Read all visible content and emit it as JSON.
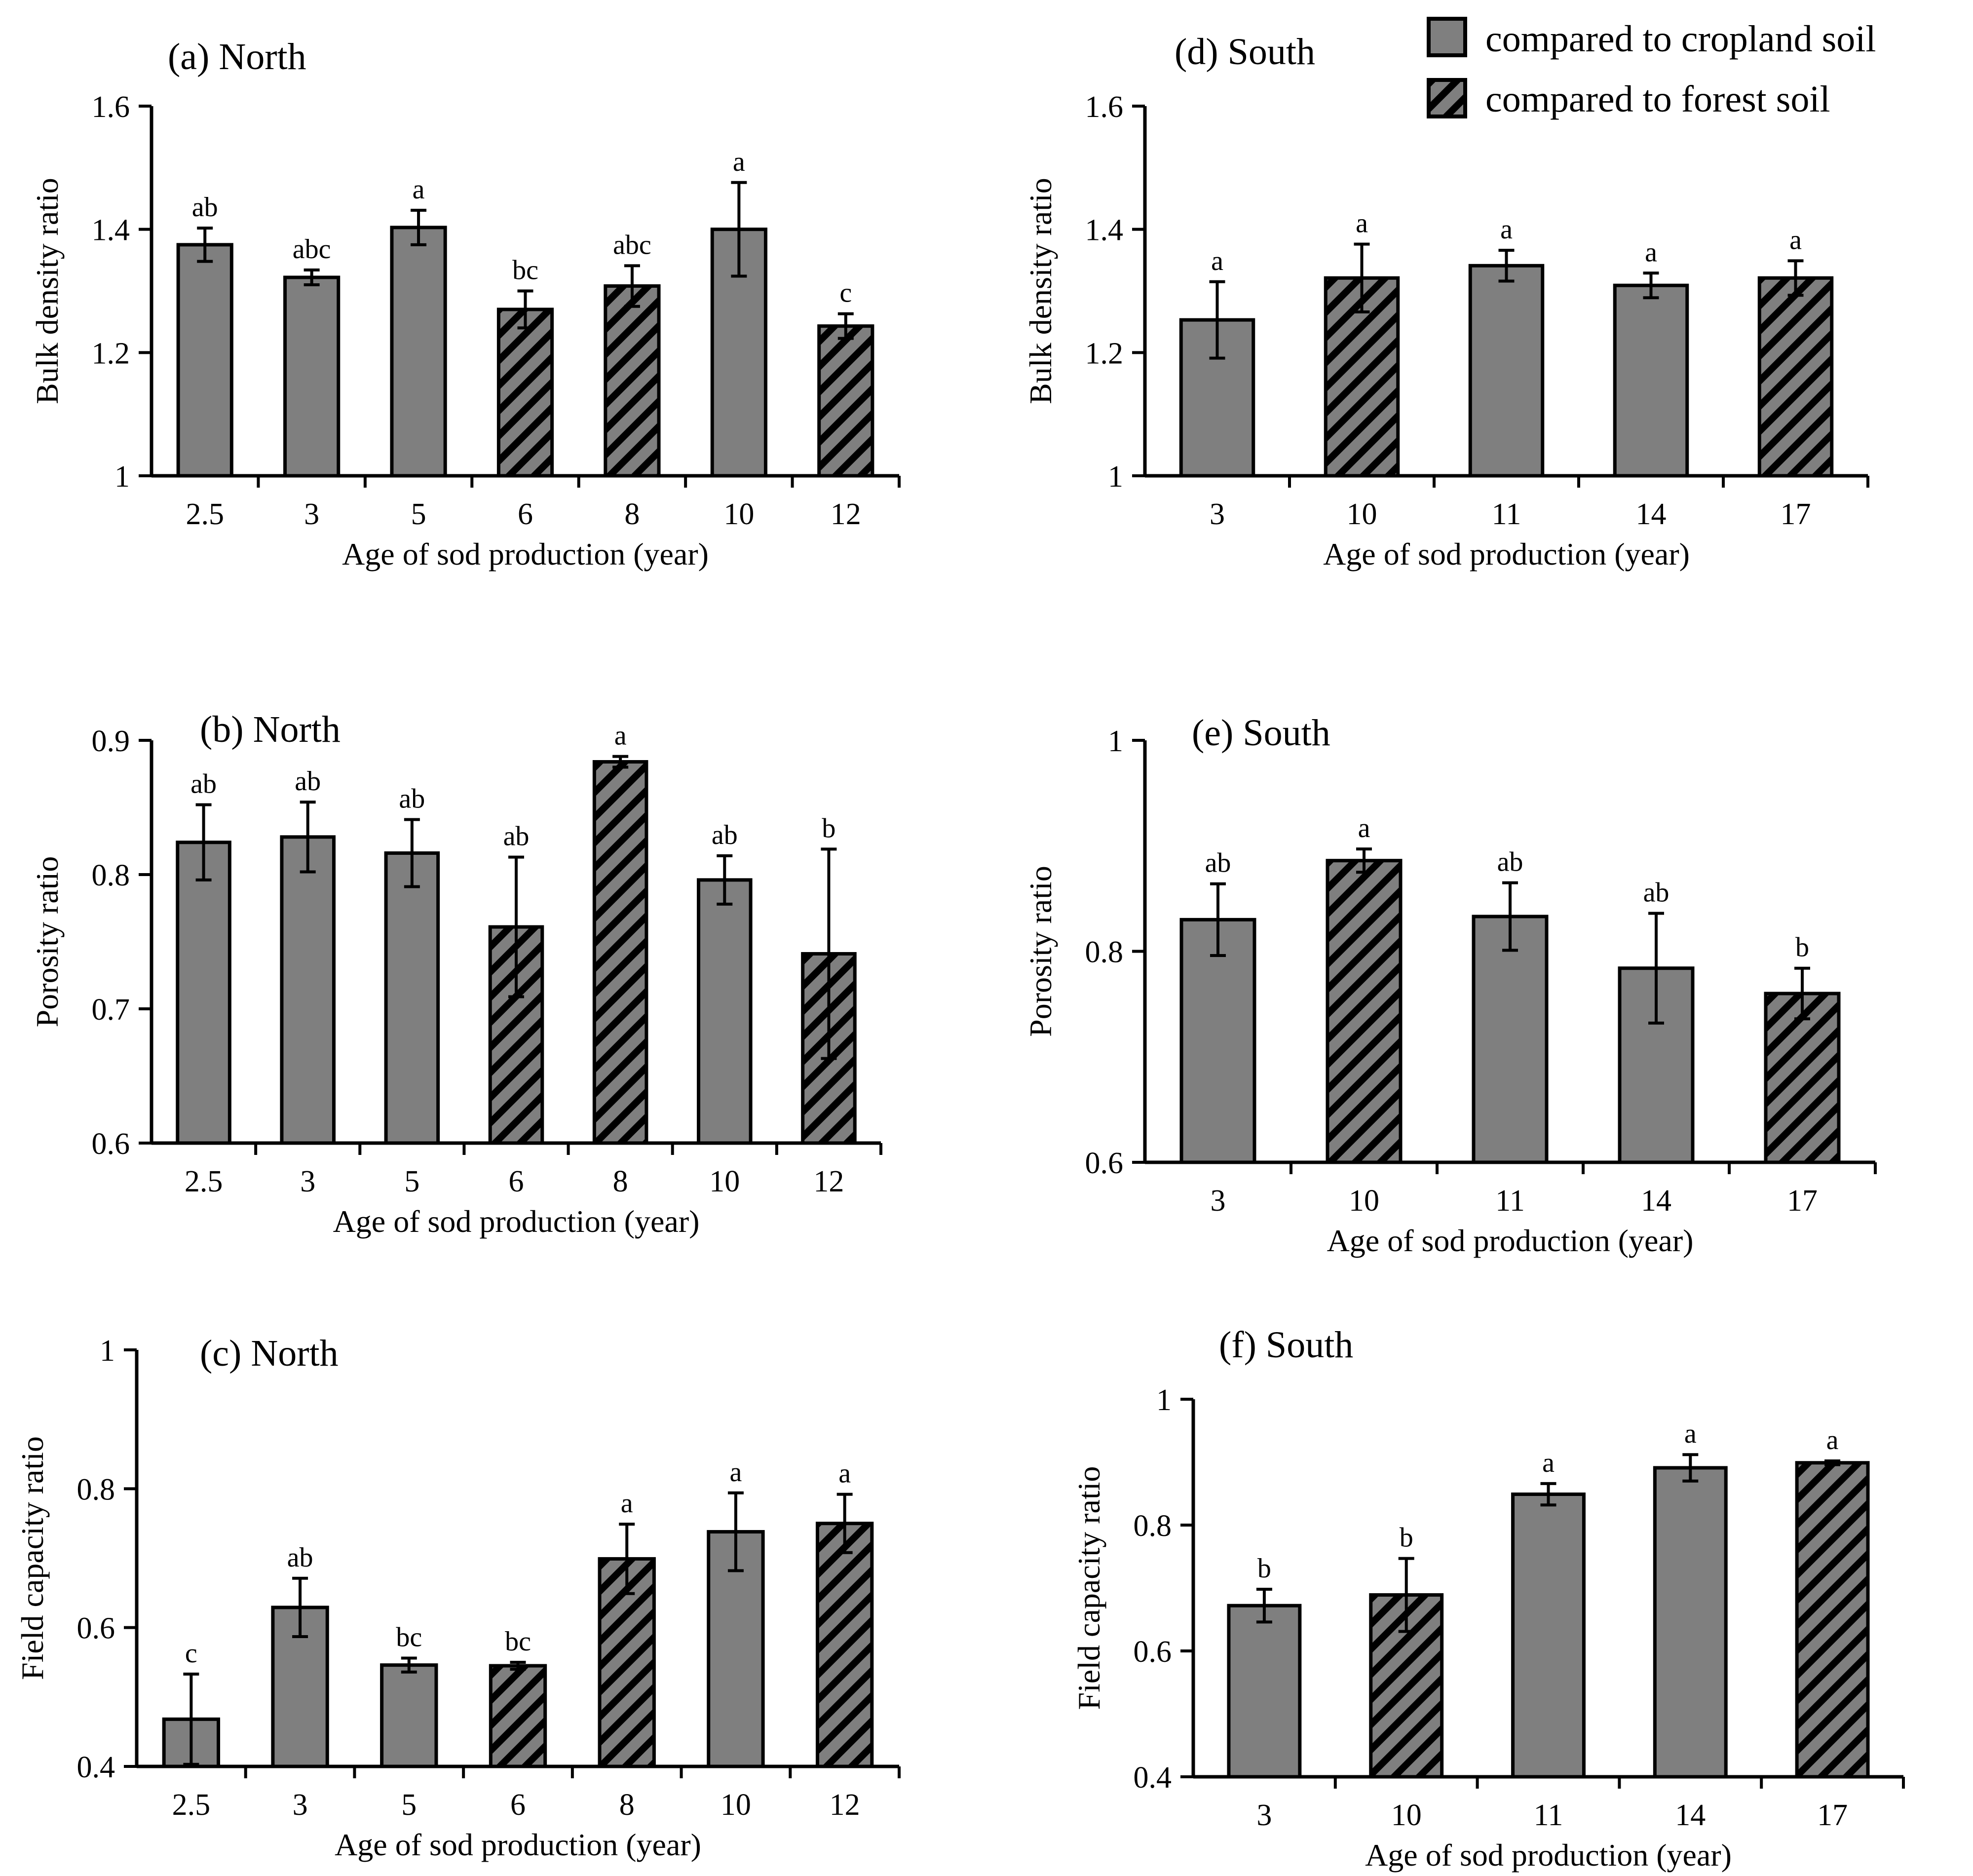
{
  "colors": {
    "bar_fill": "#7f7f7f",
    "stroke": "#000000",
    "hatch": "#000000",
    "background": "#ffffff"
  },
  "legend": {
    "position": "top-right",
    "items": [
      {
        "label": "compared to cropland soil",
        "pattern": "solid"
      },
      {
        "label": "compared to forest soil",
        "pattern": "hatched"
      }
    ]
  },
  "chart_data": [
    {
      "id": "a",
      "type": "bar",
      "title": "(a) North",
      "xlabel": "Age of sod production (year)",
      "ylabel": "Bulk density ratio",
      "ylim": [
        1,
        1.6
      ],
      "yticks": [
        "1",
        "1.2",
        "1.4",
        "1.6"
      ],
      "categories": [
        "2.5",
        "3",
        "5",
        "6",
        "8",
        "10",
        "12"
      ],
      "values": [
        1.375,
        1.322,
        1.403,
        1.27,
        1.308,
        1.4,
        1.243
      ],
      "errors": [
        0.027,
        0.012,
        0.028,
        0.03,
        0.033,
        0.076,
        0.02
      ],
      "letters": [
        "ab",
        "abc",
        "a",
        "bc",
        "abc",
        "a",
        "c"
      ],
      "patterns": [
        "solid",
        "solid",
        "solid",
        "hatched",
        "hatched",
        "solid",
        "hatched"
      ]
    },
    {
      "id": "b",
      "type": "bar",
      "title": "(b) North",
      "xlabel": "Age of sod production (year)",
      "ylabel": "Porosity ratio",
      "ylim": [
        0.6,
        0.9
      ],
      "yticks": [
        "0.6",
        "0.7",
        "0.8",
        "0.9"
      ],
      "categories": [
        "2.5",
        "3",
        "5",
        "6",
        "8",
        "10",
        "12"
      ],
      "values": [
        0.824,
        0.828,
        0.816,
        0.761,
        0.884,
        0.796,
        0.741
      ],
      "errors": [
        0.028,
        0.026,
        0.025,
        0.052,
        0.004,
        0.018,
        0.078
      ],
      "letters": [
        "ab",
        "ab",
        "ab",
        "ab",
        "a",
        "ab",
        "b"
      ],
      "patterns": [
        "solid",
        "solid",
        "solid",
        "hatched",
        "hatched",
        "solid",
        "hatched"
      ]
    },
    {
      "id": "c",
      "type": "bar",
      "title": "(c) North",
      "xlabel": "Age of sod production (year)",
      "ylabel": "Field capacity ratio",
      "ylim": [
        0.4,
        1
      ],
      "yticks": [
        "0.4",
        "0.6",
        "0.8",
        "1"
      ],
      "categories": [
        "2.5",
        "3",
        "5",
        "6",
        "8",
        "10",
        "12"
      ],
      "values": [
        0.468,
        0.629,
        0.546,
        0.545,
        0.699,
        0.738,
        0.75
      ],
      "errors": [
        0.065,
        0.042,
        0.01,
        0.005,
        0.05,
        0.056,
        0.042
      ],
      "letters": [
        "c",
        "ab",
        "bc",
        "bc",
        "a",
        "a",
        "a"
      ],
      "patterns": [
        "solid",
        "solid",
        "solid",
        "hatched",
        "hatched",
        "solid",
        "hatched"
      ]
    },
    {
      "id": "d",
      "type": "bar",
      "title": "(d) South",
      "xlabel": "Age of sod production (year)",
      "ylabel": "Bulk density ratio",
      "ylim": [
        1,
        1.6
      ],
      "yticks": [
        "1",
        "1.2",
        "1.4",
        "1.6"
      ],
      "categories": [
        "3",
        "10",
        "11",
        "14",
        "17"
      ],
      "values": [
        1.253,
        1.321,
        1.341,
        1.309,
        1.321
      ],
      "errors": [
        0.062,
        0.055,
        0.025,
        0.02,
        0.028
      ],
      "letters": [
        "a",
        "a",
        "a",
        "a",
        "a"
      ],
      "patterns": [
        "solid",
        "hatched",
        "solid",
        "solid",
        "hatched"
      ]
    },
    {
      "id": "e",
      "type": "bar",
      "title": "(e) South",
      "xlabel": "Age of sod production (year)",
      "ylabel": "Porosity ratio",
      "ylim": [
        0.6,
        1
      ],
      "yticks": [
        "0.6",
        "0.8",
        "1"
      ],
      "categories": [
        "3",
        "10",
        "11",
        "14",
        "17"
      ],
      "values": [
        0.83,
        0.886,
        0.833,
        0.784,
        0.76
      ],
      "errors": [
        0.034,
        0.011,
        0.032,
        0.052,
        0.024
      ],
      "letters": [
        "ab",
        "a",
        "ab",
        "ab",
        "b"
      ],
      "patterns": [
        "solid",
        "hatched",
        "solid",
        "solid",
        "hatched"
      ]
    },
    {
      "id": "f",
      "type": "bar",
      "title": "(f) South",
      "xlabel": "Age of sod production (year)",
      "ylabel": "Field capacity ratio",
      "ylim": [
        0.4,
        1
      ],
      "yticks": [
        "0.4",
        "0.6",
        "0.8",
        "1"
      ],
      "categories": [
        "3",
        "10",
        "11",
        "14",
        "17"
      ],
      "values": [
        0.672,
        0.689,
        0.849,
        0.891,
        0.899
      ],
      "errors": [
        0.026,
        0.058,
        0.017,
        0.021,
        0.003
      ],
      "letters": [
        "b",
        "b",
        "a",
        "a",
        "a"
      ],
      "patterns": [
        "solid",
        "hatched",
        "solid",
        "solid",
        "hatched"
      ]
    }
  ]
}
